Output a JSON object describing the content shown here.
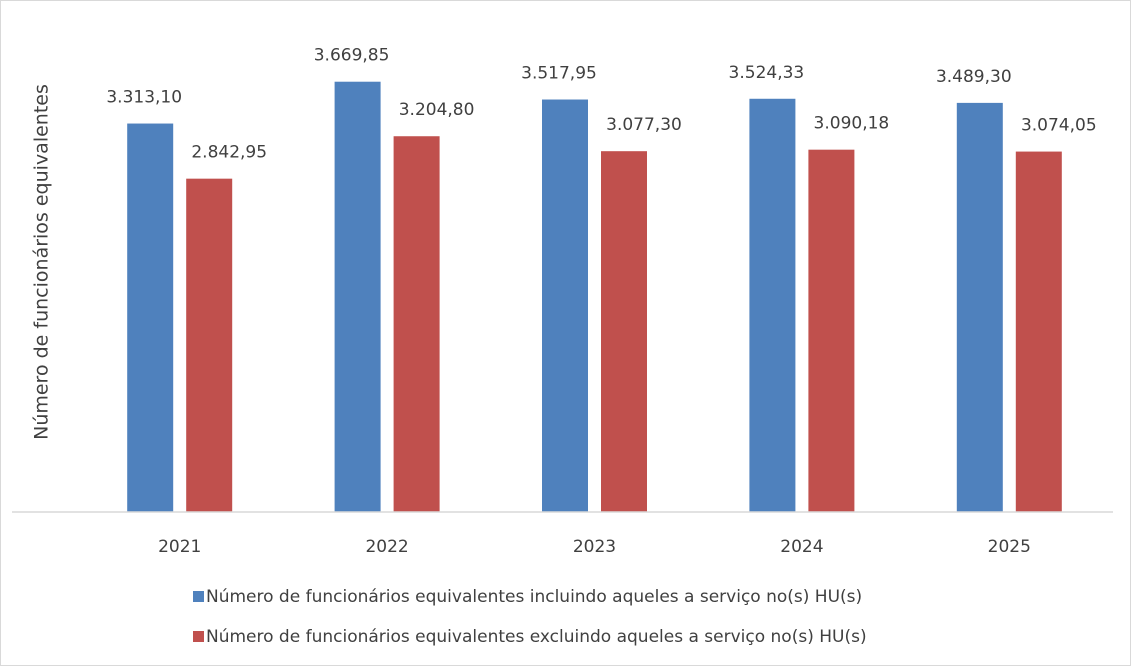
{
  "chart_data": {
    "type": "bar",
    "ylabel": "Número de funcionários equivalentes",
    "categories": [
      "2021",
      "2022",
      "2023",
      "2024",
      "2025"
    ],
    "series": [
      {
        "name": "Número de funcionários equivalentes incluindo aqueles a serviço no(s) HU(s)",
        "color": "#4f81bd",
        "values": [
          3313.1,
          3669.85,
          3517.95,
          3524.33,
          3489.3
        ],
        "value_labels": [
          "3.313,10",
          "3.669,85",
          "3.517,95",
          "3.524,33",
          "3.489,30"
        ]
      },
      {
        "name": "Número de funcionários equivalentes excluindo aqueles a serviço no(s) HU(s)",
        "color": "#c0504d",
        "values": [
          2842.95,
          3204.8,
          3077.3,
          3090.18,
          3074.05
        ],
        "value_labels": [
          "2.842,95",
          "3.204,80",
          "3.077,30",
          "3.090,18",
          "3.074,05"
        ]
      }
    ],
    "ylim": [
      0,
      4000
    ]
  }
}
